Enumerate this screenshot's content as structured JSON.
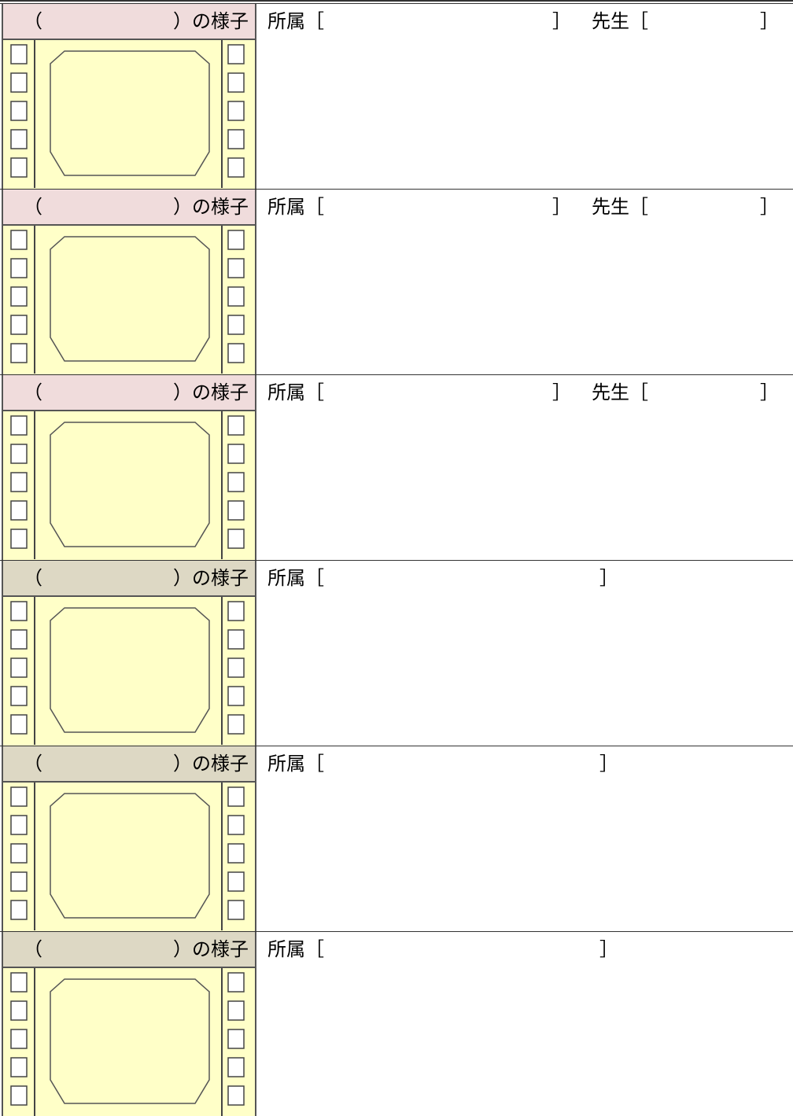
{
  "rows": [
    {
      "label_open": "（",
      "label_close": "）の様子",
      "affiliation_open": "所属［",
      "affiliation_close": "］",
      "teacher_open": "先生［",
      "teacher_close": "］"
    },
    {
      "label_open": "（",
      "label_close": "）の様子",
      "affiliation_open": "所属［",
      "affiliation_close": "］",
      "teacher_open": "先生［",
      "teacher_close": "］"
    },
    {
      "label_open": "（",
      "label_close": "）の様子",
      "affiliation_open": "所属［",
      "affiliation_close": "］",
      "teacher_open": "先生［",
      "teacher_close": "］"
    },
    {
      "label_open": "（",
      "label_close": "）の様子",
      "affiliation_open": "所属［",
      "affiliation_close": "］"
    },
    {
      "label_open": "（",
      "label_close": "）の様子",
      "affiliation_open": "所属［",
      "affiliation_close": "］"
    },
    {
      "label_open": "（",
      "label_close": "）の様子",
      "affiliation_open": "所属［",
      "affiliation_close": "］"
    }
  ]
}
